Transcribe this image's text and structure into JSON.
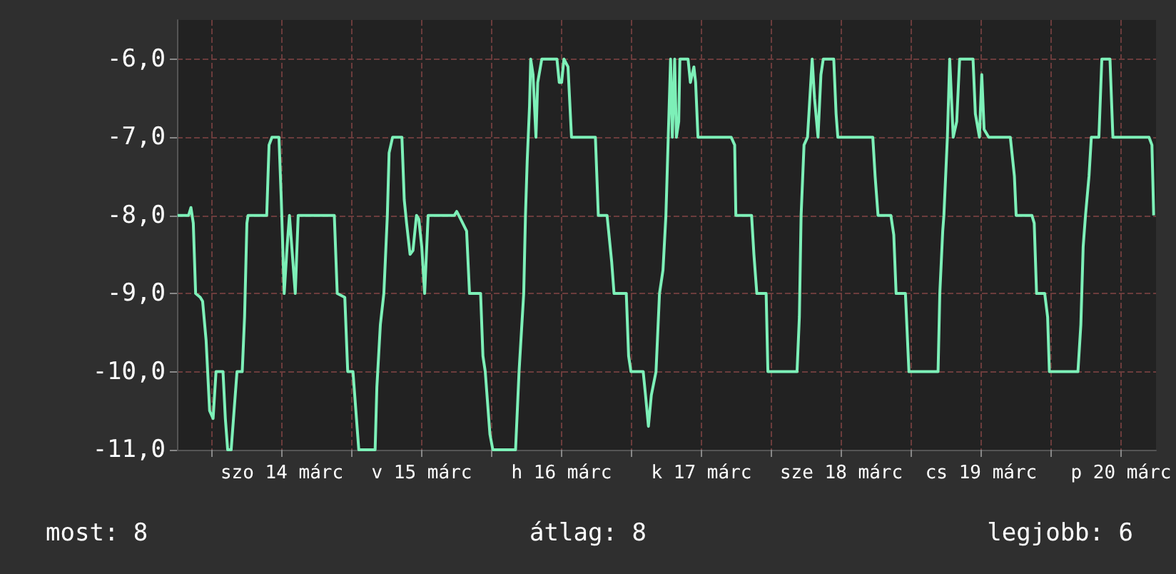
{
  "chart_data": {
    "type": "line",
    "xlim": [
      "--03-13T18:00",
      "--03-20T18:00"
    ],
    "ylim": [
      -11,
      -5.5
    ],
    "xticks": [
      {
        "value": "--03-14",
        "label": null
      },
      {
        "value": "--03-14T12:00",
        "label": "szo 14 márc"
      },
      {
        "value": "--03-15",
        "label": null
      },
      {
        "value": "--03-15T12:00",
        "label": "v 15 márc"
      },
      {
        "value": "--03-16",
        "label": null
      },
      {
        "value": "--03-16T12:00",
        "label": "h 16 márc"
      },
      {
        "value": "--03-17",
        "label": null
      },
      {
        "value": "--03-17T12:00",
        "label": "k 17 márc"
      },
      {
        "value": "--03-18",
        "label": null
      },
      {
        "value": "--03-18T12:00",
        "label": "sze 18 márc"
      },
      {
        "value": "--03-19",
        "label": null
      },
      {
        "value": "--03-19T12:00",
        "label": "cs 19 márc"
      },
      {
        "value": "--03-20",
        "label": null
      },
      {
        "value": "--03-20T12:00",
        "label": "p 20 márc"
      }
    ],
    "yticks": [
      {
        "value": -11,
        "label": "-11,0"
      },
      {
        "value": -10,
        "label": "-10,0"
      },
      {
        "value": -9,
        "label": "-9,0"
      },
      {
        "value": -8,
        "label": "-8,0"
      },
      {
        "value": -7,
        "label": "-7,0"
      },
      {
        "value": -6,
        "label": "-6,0"
      }
    ],
    "grid": true,
    "marker": "none",
    "line_style": "solid",
    "annotations": [
      "most: 8",
      "átlag: 8",
      "legjobb: 6"
    ],
    "series": [
      {
        "color": "#7df0b8",
        "x": [
          "--03-13T18:06",
          "--03-13T20:00",
          "--03-13T20:24",
          "--03-13T20:48",
          "--03-13T21:12",
          "--03-13T22:00",
          "--03-13T22:24",
          "--03-13T23:00",
          "--03-13T23:36",
          "--03-14T00:12",
          "--03-14T00:42",
          "--03-14T01:54",
          "--03-14T02:18",
          "--03-14T02:42",
          "--03-14T03:18",
          "--03-14T03:42",
          "--03-14T04:18",
          "--03-14T05:12",
          "--03-14T05:36",
          "--03-14T06:00",
          "--03-14T06:12",
          "--03-14T09:24",
          "--03-14T09:48",
          "--03-14T10:18",
          "--03-14T11:30",
          "--03-14T11:54",
          "--03-14T12:24",
          "--03-14T12:54",
          "--03-14T13:18",
          "--03-14T13:54",
          "--03-14T14:18",
          "--03-14T14:48",
          "--03-14T21:00",
          "--03-14T21:30",
          "--03-14T22:48",
          "--03-14T23:18",
          "--03-15T00:12",
          "--03-15T01:12",
          "--03-15T04:00",
          "--03-15T04:18",
          "--03-15T04:54",
          "--03-15T05:30",
          "--03-15T06:06",
          "--03-15T06:24",
          "--03-15T07:00",
          "--03-15T08:36",
          "--03-15T09:00",
          "--03-15T09:24",
          "--03-15T10:00",
          "--03-15T10:30",
          "--03-15T11:06",
          "--03-15T11:30",
          "--03-15T12:00",
          "--03-15T12:30",
          "--03-15T13:06",
          "--03-15T17:36",
          "--03-15T18:00",
          "--03-15T18:42",
          "--03-15T19:42",
          "--03-15T20:12",
          "--03-15T22:06",
          "--03-15T22:30",
          "--03-15T22:54",
          "--03-15T23:42",
          "--03-16T00:12",
          "--03-16T04:06",
          "--03-16T04:42",
          "--03-16T05:30",
          "--03-16T05:48",
          "--03-16T06:06",
          "--03-16T06:30",
          "--03-16T06:42",
          "--03-16T07:06",
          "--03-16T07:36",
          "--03-16T07:54",
          "--03-16T08:36",
          "--03-16T11:12",
          "--03-16T11:36",
          "--03-16T12:00",
          "--03-16T12:24",
          "--03-16T13:06",
          "--03-16T13:42",
          "--03-16T17:48",
          "--03-16T18:18",
          "--03-16T19:48",
          "--03-16T20:12",
          "--03-16T20:36",
          "--03-16T21:00",
          "--03-16T23:06",
          "--03-16T23:30",
          "--03-16T23:54",
          "--03-17T02:00",
          "--03-17T02:24",
          "--03-17T02:54",
          "--03-17T03:24",
          "--03-17T04:12",
          "--03-17T04:48",
          "--03-17T05:24",
          "--03-17T05:54",
          "--03-17T06:18",
          "--03-17T06:42",
          "--03-17T07:00",
          "--03-17T07:24",
          "--03-17T07:42",
          "--03-17T08:06",
          "--03-17T08:18",
          "--03-17T09:42",
          "--03-17T10:06",
          "--03-17T10:42",
          "--03-17T11:00",
          "--03-17T11:24",
          "--03-17T17:06",
          "--03-17T17:42",
          "--03-17T17:54",
          "--03-17T20:36",
          "--03-17T21:00",
          "--03-17T21:30",
          "--03-17T23:06",
          "--03-17T23:24",
          "--03-18T04:24",
          "--03-18T04:48",
          "--03-18T05:06",
          "--03-18T05:36",
          "--03-18T06:12",
          "--03-18T06:36",
          "--03-18T07:00",
          "--03-18T07:24",
          "--03-18T08:00",
          "--03-18T08:30",
          "--03-18T08:54",
          "--03-18T10:42",
          "--03-18T11:06",
          "--03-18T11:24",
          "--03-18T17:24",
          "--03-18T17:48",
          "--03-18T18:18",
          "--03-18T20:30",
          "--03-18T21:00",
          "--03-18T21:24",
          "--03-18T23:00",
          "--03-18T23:36",
          "--03-19T04:36",
          "--03-19T04:54",
          "--03-19T05:24",
          "--03-19T05:36",
          "--03-19T06:12",
          "--03-19T06:36",
          "--03-19T07:12",
          "--03-19T07:48",
          "--03-19T08:18",
          "--03-19T10:36",
          "--03-19T11:00",
          "--03-19T11:42",
          "--03-19T12:06",
          "--03-19T12:30",
          "--03-19T13:18",
          "--03-19T17:00",
          "--03-19T17:42",
          "--03-19T18:00",
          "--03-19T20:42",
          "--03-19T21:06",
          "--03-19T21:30",
          "--03-19T22:54",
          "--03-19T23:24",
          "--03-19T23:42",
          "--03-20T04:36",
          "--03-20T05:06",
          "--03-20T05:30",
          "--03-20T05:54",
          "--03-20T06:30",
          "--03-20T06:54",
          "--03-20T08:12",
          "--03-20T08:42",
          "--03-20T10:06",
          "--03-20T10:36",
          "--03-20T16:48",
          "--03-20T17:18",
          "--03-20T17:36"
        ],
        "values": [
          -8,
          -8,
          -7.9,
          -8.1,
          -9,
          -9.05,
          -9.1,
          -9.6,
          -10.5,
          -10.6,
          -10,
          -10,
          -10.6,
          -11,
          -11,
          -10.6,
          -10,
          -10,
          -9.3,
          -8.1,
          -8,
          -8,
          -7.1,
          -7,
          -7,
          -7.8,
          -9,
          -8.4,
          -8,
          -8.6,
          -9,
          -8,
          -8,
          -9,
          -9.05,
          -10,
          -10,
          -11,
          -11,
          -10.2,
          -9.4,
          -9,
          -8,
          -7.2,
          -7,
          -7,
          -7.8,
          -8.1,
          -8.5,
          -8.45,
          -8,
          -8.05,
          -8.4,
          -9,
          -8,
          -8,
          -7.95,
          -8.05,
          -8.2,
          -9,
          -9,
          -9.8,
          -10,
          -10.8,
          -11,
          -11,
          -10,
          -9,
          -8,
          -7.3,
          -6.6,
          -6,
          -6.2,
          -7,
          -6.3,
          -6,
          -6,
          -6.3,
          -6.3,
          -6,
          -6.1,
          -7,
          -7,
          -8,
          -8,
          -8.3,
          -8.6,
          -9,
          -9,
          -9.8,
          -10,
          -10,
          -10.3,
          -10.7,
          -10.3,
          -10,
          -9,
          -8.7,
          -8,
          -7,
          -6,
          -7,
          -6,
          -7,
          -6.8,
          -6,
          -6,
          -6.3,
          -6.1,
          -6.3,
          -7,
          -7,
          -7.1,
          -8,
          -8,
          -8.5,
          -9,
          -9,
          -10,
          -10,
          -9.3,
          -8,
          -7.1,
          -7,
          -6.5,
          -6,
          -6.5,
          -7,
          -6.2,
          -6,
          -6,
          -6.7,
          -7,
          -7,
          -7.5,
          -8,
          -8,
          -8.25,
          -9,
          -9,
          -10,
          -10,
          -9,
          -8.2,
          -8,
          -7,
          -6,
          -7,
          -6.8,
          -6,
          -6,
          -6.7,
          -7,
          -6.2,
          -6.9,
          -7,
          -7,
          -7.5,
          -8,
          -8,
          -8.1,
          -9,
          -9,
          -9.3,
          -10,
          -10,
          -9.4,
          -8.4,
          -8,
          -7.5,
          -7,
          -7,
          -6,
          -6,
          -7,
          -7,
          -7.1,
          -8
        ]
      }
    ]
  }
}
